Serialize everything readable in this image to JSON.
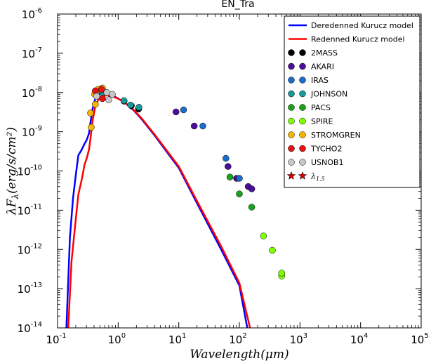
{
  "chart_data": {
    "type": "scatter",
    "title": "EN_Tra",
    "xlabel": "Wavelength(μm)",
    "ylabel": "λF_λ(erg/s/cm²)",
    "xscale": "log",
    "yscale": "log",
    "xlim": [
      0.1,
      100000
    ],
    "ylim": [
      1e-14,
      1e-06
    ],
    "x_ticks": [
      {
        "value": 0.1,
        "base": "10",
        "exp": "-1"
      },
      {
        "value": 1,
        "base": "10",
        "exp": "0"
      },
      {
        "value": 10,
        "base": "10",
        "exp": "1"
      },
      {
        "value": 100,
        "base": "10",
        "exp": "2"
      },
      {
        "value": 1000,
        "base": "10",
        "exp": "3"
      },
      {
        "value": 10000,
        "base": "10",
        "exp": "4"
      },
      {
        "value": 100000,
        "base": "10",
        "exp": "5"
      }
    ],
    "y_ticks": [
      {
        "value": 1e-06,
        "base": "10",
        "exp": "-6"
      },
      {
        "value": 1e-07,
        "base": "10",
        "exp": "-7"
      },
      {
        "value": 1e-08,
        "base": "10",
        "exp": "-8"
      },
      {
        "value": 1e-09,
        "base": "10",
        "exp": "-9"
      },
      {
        "value": 1e-10,
        "base": "10",
        "exp": "-10"
      },
      {
        "value": 1e-11,
        "base": "10",
        "exp": "-11"
      },
      {
        "value": 1e-12,
        "base": "10",
        "exp": "-12"
      },
      {
        "value": 1e-13,
        "base": "10",
        "exp": "-13"
      },
      {
        "value": 1e-14,
        "base": "10",
        "exp": "-14"
      }
    ],
    "legend_position": "top-right",
    "lines": [
      {
        "name": "Deredenned Kurucz model",
        "color": "#0000ff",
        "points": [
          [
            0.14,
            1e-14
          ],
          [
            0.16,
            2e-12
          ],
          [
            0.18,
            2e-11
          ],
          [
            0.2,
            8e-11
          ],
          [
            0.22,
            2.5e-10
          ],
          [
            0.25,
            3.5e-10
          ],
          [
            0.28,
            5e-10
          ],
          [
            0.3,
            6e-10
          ],
          [
            0.33,
            9e-10
          ],
          [
            0.35,
            1.8e-09
          ],
          [
            0.38,
            4e-09
          ],
          [
            0.42,
            7e-09
          ],
          [
            0.48,
            9e-09
          ],
          [
            0.55,
            9.5e-09
          ],
          [
            0.65,
            9.5e-09
          ],
          [
            0.8,
            8.5e-09
          ],
          [
            1.0,
            7e-09
          ],
          [
            1.3,
            5.5e-09
          ],
          [
            1.8,
            3.5e-09
          ],
          [
            2.5,
            2e-09
          ],
          [
            4,
            8e-10
          ],
          [
            7,
            2.5e-10
          ],
          [
            10,
            1.2e-10
          ],
          [
            20,
            1.5e-11
          ],
          [
            50,
            1e-12
          ],
          [
            100,
            1.2e-13
          ],
          [
            135,
            1e-14
          ]
        ]
      },
      {
        "name": "Redenned Kurucz model",
        "color": "#ff0000",
        "points": [
          [
            0.15,
            1e-14
          ],
          [
            0.17,
            5e-13
          ],
          [
            0.2,
            6e-12
          ],
          [
            0.22,
            2.5e-11
          ],
          [
            0.25,
            6e-11
          ],
          [
            0.28,
            1.5e-10
          ],
          [
            0.3,
            2e-10
          ],
          [
            0.33,
            3.5e-10
          ],
          [
            0.35,
            7e-10
          ],
          [
            0.38,
            2e-09
          ],
          [
            0.42,
            4.5e-09
          ],
          [
            0.48,
            7e-09
          ],
          [
            0.55,
            8e-09
          ],
          [
            0.65,
            8.5e-09
          ],
          [
            0.8,
            8e-09
          ],
          [
            1.0,
            7e-09
          ],
          [
            1.3,
            5.5e-09
          ],
          [
            1.8,
            3.6e-09
          ],
          [
            2.5,
            2.1e-09
          ],
          [
            4,
            8.5e-10
          ],
          [
            7,
            2.7e-10
          ],
          [
            10,
            1.3e-10
          ],
          [
            20,
            1.7e-11
          ],
          [
            50,
            1.2e-12
          ],
          [
            100,
            1.4e-13
          ],
          [
            150,
            1e-14
          ]
        ]
      }
    ],
    "series": [
      {
        "name": "2MASS",
        "color": "#000000",
        "points": [
          [
            1.25,
            6e-09
          ],
          [
            1.65,
            4.6e-09
          ],
          [
            2.17,
            3.8e-09
          ]
        ]
      },
      {
        "name": "AKARI",
        "color": "#4b0f9a",
        "points": [
          [
            9,
            3.2e-09
          ],
          [
            18,
            1.4e-09
          ],
          [
            65,
            1.3e-10
          ],
          [
            90,
            6.5e-11
          ],
          [
            140,
            4e-11
          ],
          [
            160,
            3.5e-11
          ]
        ]
      },
      {
        "name": "IRAS",
        "color": "#1a6ec9",
        "points": [
          [
            12,
            3.6e-09
          ],
          [
            25,
            1.4e-09
          ],
          [
            60,
            2.1e-10
          ],
          [
            100,
            6.5e-11
          ]
        ]
      },
      {
        "name": "JOHNSON",
        "color": "#189a9a",
        "points": [
          [
            1.25,
            6.2e-09
          ],
          [
            1.6,
            4.8e-09
          ],
          [
            2.2,
            4.2e-09
          ],
          [
            0.55,
            1e-08
          ]
        ]
      },
      {
        "name": "PACS",
        "color": "#1aa31a",
        "points": [
          [
            70,
            7e-11
          ],
          [
            100,
            2.6e-11
          ],
          [
            160,
            1.2e-11
          ]
        ]
      },
      {
        "name": "SPIRE",
        "color": "#7fff00",
        "points": [
          [
            250,
            2.2e-12
          ],
          [
            350,
            9.5e-13
          ],
          [
            500,
            2.1e-13
          ],
          [
            500,
            2.5e-13
          ]
        ]
      },
      {
        "name": "STROMGREN",
        "color": "#f7b500",
        "points": [
          [
            0.35,
            3e-09
          ],
          [
            0.41,
            9e-09
          ],
          [
            0.47,
            1.2e-08
          ],
          [
            0.55,
            1.3e-08
          ],
          [
            0.36,
            1.3e-09
          ],
          [
            0.42,
            5e-09
          ]
        ]
      },
      {
        "name": "TYCHO2",
        "color": "#e81010",
        "points": [
          [
            0.42,
            1.1e-08
          ],
          [
            0.53,
            1.2e-08
          ],
          [
            0.55,
            7e-09
          ]
        ]
      },
      {
        "name": "USNOB1",
        "color": "#c8c8c8",
        "points": [
          [
            0.44,
            8e-09
          ],
          [
            0.65,
            1e-08
          ],
          [
            0.8,
            9e-09
          ],
          [
            0.7,
            6.5e-09
          ]
        ]
      }
    ],
    "legend_extra": {
      "name": "λ_1.5",
      "color": "#cc0000",
      "marker": "star"
    }
  }
}
